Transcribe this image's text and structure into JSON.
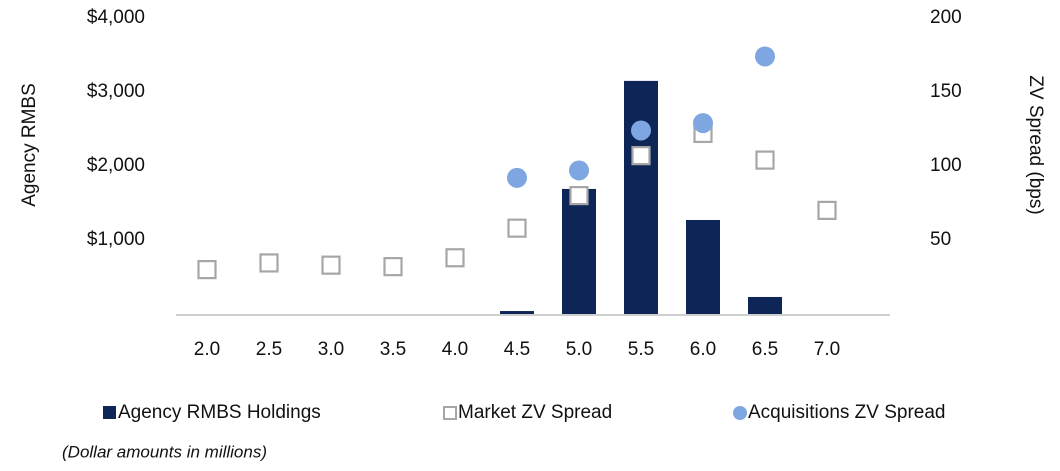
{
  "chart_data": {
    "type": "bar",
    "categories": [
      "2.0",
      "2.5",
      "3.0",
      "3.5",
      "4.0",
      "4.5",
      "5.0",
      "5.5",
      "6.0",
      "6.5",
      "7.0"
    ],
    "series": [
      {
        "name": "Agency RMBS Holdings",
        "type": "bar",
        "axis": "y",
        "color": "#0d2557",
        "values": [
          null,
          null,
          null,
          null,
          null,
          40,
          1690,
          3150,
          1270,
          230,
          null
        ]
      },
      {
        "name": "Market ZV Spread",
        "type": "scatter",
        "marker": "square",
        "axis": "y2",
        "color": "#a6a6a6",
        "values": [
          30,
          34.5,
          33,
          32,
          38,
          58,
          80,
          107,
          122,
          104,
          70
        ]
      },
      {
        "name": "Acquisitions ZV Spread",
        "type": "scatter",
        "marker": "circle",
        "axis": "y2",
        "color": "#7ea6e0",
        "values": [
          null,
          null,
          null,
          null,
          null,
          92,
          97,
          124,
          129,
          174,
          null
        ]
      }
    ],
    "y_label": "Agency RMBS",
    "y2_label": "ZV Spread (bps)",
    "ylim": [
      0,
      4000
    ],
    "yticks": [
      {
        "value": 1000,
        "label": "$1,000"
      },
      {
        "value": 2000,
        "label": "$2,000"
      },
      {
        "value": 3000,
        "label": "$3,000"
      },
      {
        "value": 4000,
        "label": "$4,000"
      }
    ],
    "y2lim": [
      0,
      200
    ],
    "y2ticks": [
      50,
      100,
      150,
      200
    ],
    "grid": false,
    "legend": "bottom",
    "note": "(Dollar amounts in millions)"
  }
}
